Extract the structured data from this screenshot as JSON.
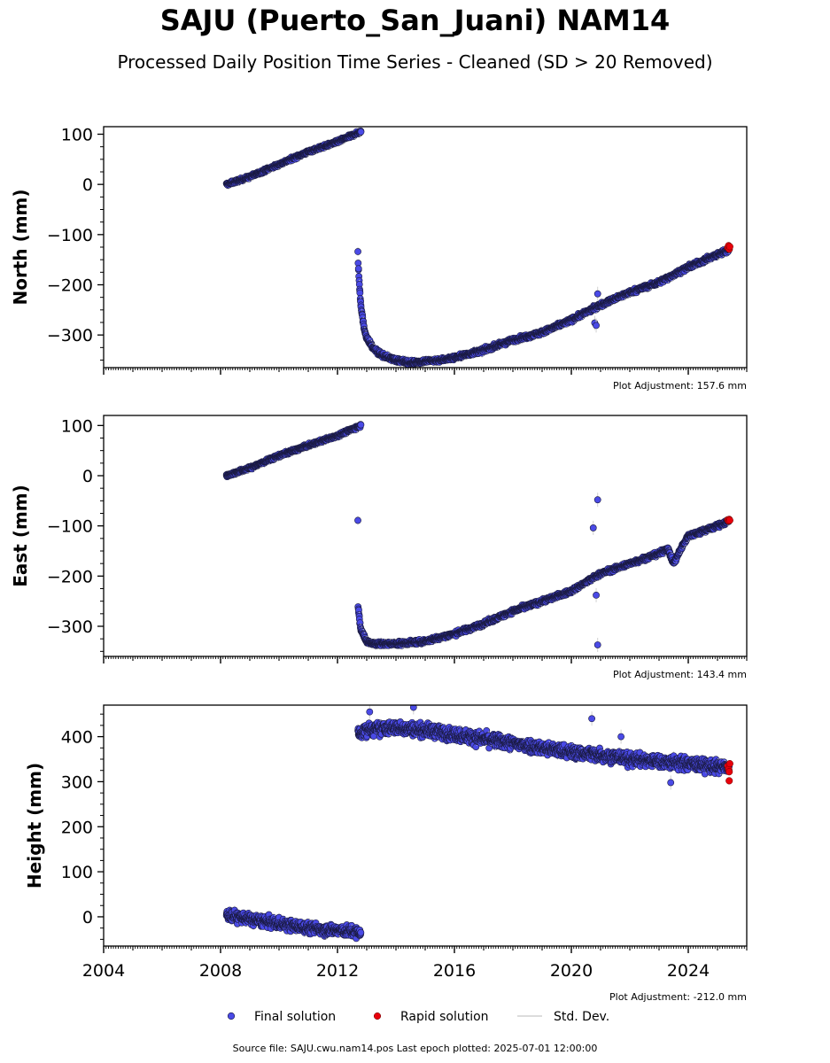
{
  "title": "SAJU (Puerto_San_Juani) NAM14",
  "subtitle": "Processed Daily Position Time Series - Cleaned (SD > 20 Removed)",
  "source": "Source file: SAJU.cwu.nam14.pos  Last epoch plotted: 2025-07-01 12:00:00",
  "legend": {
    "final": "Final solution",
    "rapid": "Rapid solution",
    "sd": "Std. Dev."
  },
  "colors": {
    "final": "#4a4ae6",
    "rapid": "#e8000b",
    "edge": "#1a1a40",
    "sd": "#d0d0d0"
  },
  "chart_data": [
    {
      "type": "scatter",
      "ylabel": "North (mm)",
      "adjustment": "Plot Adjustment: 157.6 mm",
      "xlim": [
        2004,
        2026
      ],
      "ylim": [
        -365,
        115
      ],
      "yticks": [
        100,
        0,
        -100,
        -200,
        -300
      ],
      "ytick_labels": [
        "100",
        "0",
        "−100",
        "−200",
        "−300"
      ],
      "series": [
        {
          "kind": "final",
          "segments": [
            {
              "x": [
                2008.2,
                2009.0,
                2010.0,
                2011.0,
                2012.0,
                2012.8
              ],
              "y": [
                0,
                15,
                40,
                65,
                85,
                105
              ],
              "noise": 3
            },
            {
              "x": [
                2012.7,
                2012.75,
                2012.8,
                2012.9,
                2013.0,
                2013.2,
                2013.5,
                2014.0,
                2014.5,
                2015.0,
                2015.5,
                2016.0,
                2017.0,
                2018.0,
                2019.0,
                2020.0,
                2021.0,
                2022.0,
                2023.0,
                2024.0,
                2025.0,
                2025.4
              ],
              "y": [
                -150,
                -200,
                -240,
                -285,
                -305,
                -325,
                -340,
                -350,
                -355,
                -352,
                -350,
                -345,
                -330,
                -310,
                -295,
                -270,
                -240,
                -215,
                -195,
                -165,
                -140,
                -130
              ],
              "noise": 4
            }
          ],
          "outliers": [
            [
              2020.9,
              -218
            ],
            [
              2020.8,
              -276
            ],
            [
              2020.85,
              -281
            ]
          ]
        },
        {
          "kind": "rapid",
          "points": [
            [
              2025.35,
              -126
            ],
            [
              2025.38,
              -122
            ],
            [
              2025.4,
              -129
            ],
            [
              2025.42,
              -124
            ]
          ]
        }
      ]
    },
    {
      "type": "scatter",
      "ylabel": "East (mm)",
      "adjustment": "Plot Adjustment: 143.4 mm",
      "xlim": [
        2004,
        2026
      ],
      "ylim": [
        -360,
        120
      ],
      "yticks": [
        100,
        0,
        -100,
        -200,
        -300
      ],
      "ytick_labels": [
        "100",
        "0",
        "−100",
        "−200",
        "−300"
      ],
      "series": [
        {
          "kind": "final",
          "segments": [
            {
              "x": [
                2008.2,
                2009.0,
                2010.0,
                2011.0,
                2012.0,
                2012.8
              ],
              "y": [
                0,
                15,
                40,
                60,
                80,
                100
              ],
              "noise": 3
            },
            {
              "x": [
                2012.7,
                2012.75,
                2012.8,
                2012.9,
                2013.0,
                2013.3,
                2014.0,
                2015.0,
                2016.0,
                2017.0,
                2018.0,
                2019.0,
                2020.0,
                2021.0,
                2022.0,
                2023.0,
                2023.3,
                2023.5,
                2023.8,
                2024.0,
                2025.0,
                2025.4
              ],
              "y": [
                -255,
                -285,
                -305,
                -320,
                -330,
                -335,
                -335,
                -330,
                -315,
                -295,
                -270,
                -250,
                -230,
                -195,
                -175,
                -155,
                -145,
                -175,
                -140,
                -120,
                -100,
                -90
              ],
              "noise": 4
            }
          ],
          "outliers": [
            [
              2020.9,
              -48
            ],
            [
              2020.75,
              -104
            ],
            [
              2020.85,
              -238
            ],
            [
              2020.9,
              -337
            ]
          ]
        },
        {
          "kind": "rapid",
          "points": [
            [
              2025.35,
              -88
            ],
            [
              2025.38,
              -90
            ],
            [
              2025.4,
              -87
            ],
            [
              2025.42,
              -89
            ]
          ]
        }
      ]
    },
    {
      "type": "scatter",
      "ylabel": "Height (mm)",
      "adjustment": "Plot Adjustment: -212.0 mm",
      "xlim": [
        2004,
        2026
      ],
      "ylim": [
        -65,
        470
      ],
      "yticks": [
        400,
        300,
        200,
        100,
        0
      ],
      "ytick_labels": [
        "400",
        "300",
        "200",
        "100",
        "0"
      ],
      "xticks": [
        2004,
        2008,
        2012,
        2016,
        2020,
        2024
      ],
      "xtick_labels": [
        "2004",
        "2008",
        "2012",
        "2016",
        "2020",
        "2024"
      ],
      "series": [
        {
          "kind": "final",
          "segments": [
            {
              "x": [
                2008.2,
                2009.0,
                2010.0,
                2011.0,
                2012.0,
                2012.8
              ],
              "y": [
                5,
                -5,
                -15,
                -25,
                -30,
                -35
              ],
              "noise": 12
            },
            {
              "x": [
                2012.7,
                2013.0,
                2014.0,
                2015.0,
                2016.0,
                2017.0,
                2018.0,
                2019.0,
                2020.0,
                2021.0,
                2022.0,
                2023.0,
                2024.0,
                2025.4
              ],
              "y": [
                405,
                415,
                420,
                415,
                405,
                395,
                385,
                375,
                365,
                360,
                350,
                345,
                340,
                330
              ],
              "noise": 14
            }
          ],
          "outliers": [
            [
              2013.1,
              455
            ],
            [
              2014.6,
              465
            ],
            [
              2020.7,
              440
            ],
            [
              2021.7,
              400
            ],
            [
              2023.4,
              298
            ]
          ]
        },
        {
          "kind": "rapid",
          "points": [
            [
              2025.35,
              335
            ],
            [
              2025.38,
              328
            ],
            [
              2025.4,
              322
            ],
            [
              2025.42,
              340
            ],
            [
              2025.4,
              302
            ]
          ]
        }
      ]
    }
  ]
}
